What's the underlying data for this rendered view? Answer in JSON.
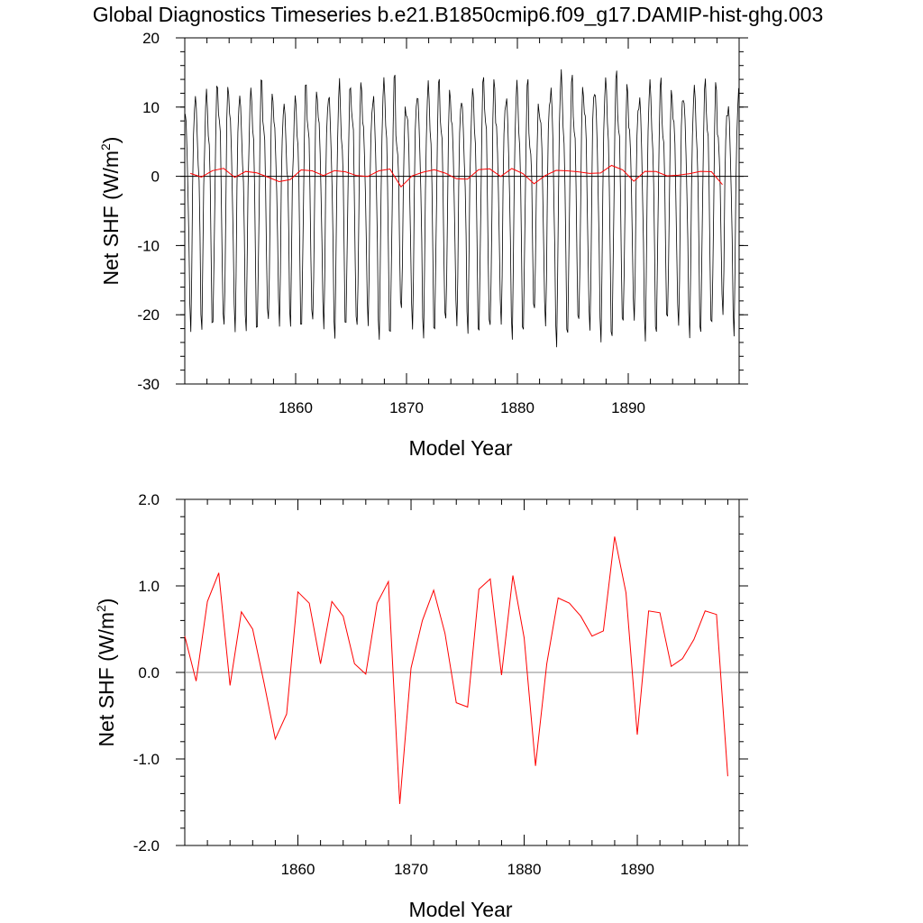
{
  "title": "Global Diagnostics Timeseries b.e21.B1850cmip6.f09_g17.DAMIP-hist-ghg.003",
  "chart_data": [
    {
      "type": "line",
      "xlabel": "Model Year",
      "ylabel": "Net SHF (W/m",
      "ylabel_sup": "2",
      "ylabel_close": ")",
      "xlim": [
        1850,
        1900
      ],
      "ylim": [
        -30,
        20
      ],
      "xticks": [
        "1860",
        "1870",
        "1880",
        "1890"
      ],
      "yticks": [
        "20",
        "10",
        "0",
        "-10",
        "-20",
        "-30"
      ],
      "monthly_cycle": {
        "color": "#000000",
        "month_offsets": [
          9.0,
          6.5,
          3.5,
          -1.5,
          -10.0,
          -19.5,
          -21.5,
          -13.5,
          -2.5,
          5.5,
          11.0,
          11.8
        ],
        "year_adjust": [
          0.0,
          -0.3,
          0.4,
          0.8,
          0.1,
          -0.2,
          0.9,
          0.2,
          -0.5,
          -0.8,
          0.5,
          0.3,
          -0.1,
          0.6,
          0.2,
          1.0,
          -0.4,
          0.7,
          1.2,
          -1.0,
          0.1,
          0.5,
          0.8,
          0.3,
          -0.2,
          -0.1,
          0.9,
          1.1,
          -0.3,
          0.6,
          0.7,
          -0.9,
          0.0,
          1.5,
          1.0,
          0.4,
          0.6,
          0.9,
          1.3,
          0.6,
          -0.5,
          0.8,
          0.7,
          0.1,
          0.2,
          0.4,
          0.6,
          0.7,
          -1.0,
          0.2
        ]
      },
      "series": [
        {
          "color": "#ff0000",
          "x": [
            1850.5,
            1851.5,
            1852.5,
            1853.5,
            1854.5,
            1855.5,
            1856.5,
            1857.5,
            1858.5,
            1859.5,
            1860.5,
            1861.5,
            1862.5,
            1863.5,
            1864.5,
            1865.5,
            1866.5,
            1867.5,
            1868.5,
            1869.5,
            1870.5,
            1871.5,
            1872.5,
            1873.5,
            1874.5,
            1875.5,
            1876.5,
            1877.5,
            1878.5,
            1879.5,
            1880.5,
            1881.5,
            1882.5,
            1883.5,
            1884.5,
            1885.5,
            1886.5,
            1887.5,
            1888.5,
            1889.5,
            1890.5,
            1891.5,
            1892.5,
            1893.5,
            1894.5,
            1895.5,
            1896.5,
            1897.5,
            1898.5
          ],
          "values": [
            0.42,
            -0.1,
            0.82,
            1.15,
            -0.15,
            0.7,
            0.5,
            -0.12,
            -0.77,
            -0.48,
            0.93,
            0.8,
            0.1,
            0.82,
            0.65,
            0.1,
            -0.02,
            0.8,
            1.05,
            -1.52,
            0.05,
            0.6,
            0.95,
            0.45,
            -0.35,
            -0.4,
            0.96,
            1.08,
            -0.03,
            1.12,
            0.4,
            -1.08,
            0.1,
            0.86,
            0.8,
            0.65,
            0.42,
            0.48,
            1.57,
            0.92,
            -0.72,
            0.71,
            0.69,
            0.07,
            0.16,
            0.38,
            0.71,
            0.67,
            -1.2
          ]
        }
      ]
    },
    {
      "type": "line",
      "xlabel": "Model Year",
      "ylabel": "Net SHF (W/m",
      "ylabel_sup": "2",
      "ylabel_close": ")",
      "xlim": [
        1850,
        1899
      ],
      "ylim": [
        -2.0,
        2.0
      ],
      "xticks": [
        "1860",
        "1870",
        "1880",
        "1890"
      ],
      "yticks": [
        "2.0",
        "1.0",
        "0.0",
        "-1.0",
        "-2.0"
      ],
      "series": [
        {
          "color": "#ff0000",
          "x": [
            1850.0,
            1851.0,
            1852.0,
            1853.0,
            1854.0,
            1855.0,
            1856.0,
            1857.0,
            1858.0,
            1859.0,
            1860.0,
            1861.0,
            1862.0,
            1863.0,
            1864.0,
            1865.0,
            1866.0,
            1867.0,
            1868.0,
            1869.0,
            1870.0,
            1871.0,
            1872.0,
            1873.0,
            1874.0,
            1875.0,
            1876.0,
            1877.0,
            1878.0,
            1879.0,
            1880.0,
            1881.0,
            1882.0,
            1883.0,
            1884.0,
            1885.0,
            1886.0,
            1887.0,
            1888.0,
            1889.0,
            1890.0,
            1891.0,
            1892.0,
            1893.0,
            1894.0,
            1895.0,
            1896.0,
            1897.0,
            1898.0
          ],
          "values": [
            0.42,
            -0.1,
            0.82,
            1.15,
            -0.15,
            0.7,
            0.5,
            -0.12,
            -0.77,
            -0.48,
            0.93,
            0.8,
            0.1,
            0.82,
            0.65,
            0.1,
            -0.02,
            0.8,
            1.05,
            -1.52,
            0.05,
            0.6,
            0.95,
            0.45,
            -0.35,
            -0.4,
            0.96,
            1.08,
            -0.03,
            1.12,
            0.4,
            -1.08,
            0.1,
            0.86,
            0.8,
            0.65,
            0.42,
            0.48,
            1.57,
            0.92,
            -0.72,
            0.71,
            0.69,
            0.07,
            0.16,
            0.38,
            0.71,
            0.67,
            -1.2
          ]
        }
      ]
    }
  ]
}
